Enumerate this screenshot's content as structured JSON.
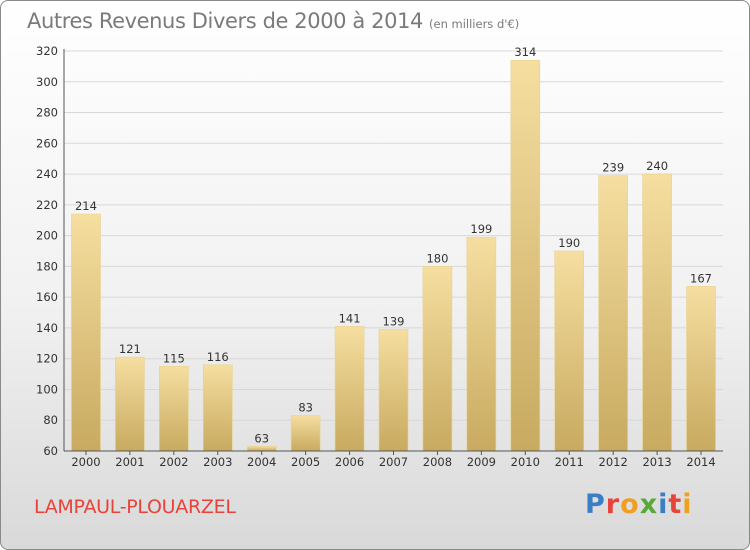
{
  "chart_data": {
    "type": "bar",
    "title": "Autres Revenus Divers de 2000 à 2014",
    "subtitle": "(en milliers d'€)",
    "categories": [
      "2000",
      "2001",
      "2002",
      "2003",
      "2004",
      "2005",
      "2006",
      "2007",
      "2008",
      "2009",
      "2010",
      "2011",
      "2012",
      "2013",
      "2014"
    ],
    "values": [
      214,
      121,
      115,
      116,
      63,
      83,
      141,
      139,
      180,
      199,
      314,
      190,
      239,
      240,
      167
    ],
    "ylim": [
      60,
      320
    ],
    "yticks": [
      60,
      80,
      100,
      120,
      140,
      160,
      180,
      200,
      220,
      240,
      260,
      280,
      300,
      320
    ],
    "grid": true,
    "legend": "none",
    "xlabel": "",
    "ylabel": ""
  },
  "footer": {
    "commune": "LAMPAUL-PLOUARZEL",
    "logo": [
      "P",
      "r",
      "o",
      "x",
      "i",
      "t",
      "i"
    ]
  },
  "colors": {
    "bar_light": "#f5dea0",
    "bar_dark": "#c8aa60",
    "grid": "#d8d8d8",
    "commune": "#e8433a",
    "logo": [
      "#3a7fc4",
      "#e8433a",
      "#f0a020",
      "#5aa83a",
      "#3a7fc4",
      "#e8433a",
      "#f0a020"
    ]
  }
}
